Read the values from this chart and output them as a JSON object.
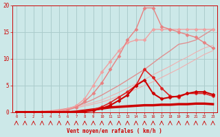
{
  "x": [
    0,
    1,
    2,
    3,
    4,
    5,
    6,
    7,
    8,
    9,
    10,
    11,
    12,
    13,
    14,
    15,
    16,
    17,
    18,
    19,
    20,
    21,
    22,
    23
  ],
  "background_color": "#cce8e8",
  "grid_color": "#aacccc",
  "xlabel": "Vent moyen/en rafales ( km/h )",
  "xlabel_color": "#cc0000",
  "tick_color": "#cc0000",
  "series": [
    {
      "values": [
        0,
        0.05,
        0.1,
        0.2,
        0.3,
        0.5,
        0.7,
        1.0,
        1.4,
        1.8,
        2.3,
        3.0,
        3.7,
        4.5,
        5.3,
        6.1,
        7.0,
        7.8,
        8.6,
        9.5,
        10.3,
        11.2,
        12.0,
        12.5
      ],
      "color": "#f0b0b0",
      "linewidth": 0.8,
      "marker": null,
      "markersize": 0,
      "zorder": 1
    },
    {
      "values": [
        0,
        0.04,
        0.08,
        0.15,
        0.25,
        0.4,
        0.6,
        0.85,
        1.15,
        1.5,
        1.9,
        2.4,
        3.0,
        3.6,
        4.3,
        5.0,
        5.7,
        6.5,
        7.3,
        8.1,
        9.0,
        9.9,
        10.8,
        11.5
      ],
      "color": "#f0b0b0",
      "linewidth": 0.8,
      "marker": null,
      "markersize": 0,
      "zorder": 1
    },
    {
      "values": [
        0,
        0,
        0,
        0.05,
        0.1,
        0.3,
        0.6,
        1.2,
        2.5,
        5.0,
        7.5,
        9.5,
        11.5,
        13.0,
        13.5,
        13.5,
        15.5,
        15.5,
        15.5,
        15.5,
        15.5,
        15.5,
        15.5,
        15.5
      ],
      "color": "#f0a0a0",
      "linewidth": 1.0,
      "marker": "D",
      "markersize": 2.5,
      "zorder": 2
    },
    {
      "values": [
        0,
        0,
        0,
        0,
        0.05,
        0.15,
        0.4,
        0.9,
        2.0,
        3.5,
        5.5,
        8.0,
        10.5,
        13.5,
        15.5,
        19.5,
        19.5,
        16.0,
        15.5,
        15.0,
        14.5,
        14.0,
        13.0,
        12.0
      ],
      "color": "#e88080",
      "linewidth": 1.0,
      "marker": "D",
      "markersize": 2.5,
      "zorder": 2
    },
    {
      "values": [
        0,
        0,
        0.05,
        0.1,
        0.2,
        0.4,
        0.7,
        1.1,
        1.7,
        2.4,
        3.2,
        4.1,
        5.0,
        6.0,
        7.0,
        8.0,
        9.2,
        10.4,
        11.5,
        12.7,
        13.0,
        13.5,
        14.5,
        15.5
      ],
      "color": "#e09090",
      "linewidth": 1.0,
      "marker": null,
      "markersize": 0,
      "zorder": 1
    },
    {
      "values": [
        0,
        0,
        0,
        0,
        0,
        0,
        0,
        0,
        0.2,
        0.5,
        1.0,
        1.8,
        2.8,
        3.8,
        5.0,
        8.0,
        6.5,
        4.5,
        3.0,
        2.8,
        3.5,
        3.5,
        3.5,
        3.0
      ],
      "color": "#dd2222",
      "linewidth": 1.2,
      "marker": "P",
      "markersize": 3,
      "zorder": 4
    },
    {
      "values": [
        0,
        0,
        0,
        0,
        0,
        0,
        0,
        0.1,
        0.3,
        0.5,
        0.7,
        0.9,
        1.0,
        1.1,
        1.2,
        1.3,
        1.3,
        1.4,
        1.4,
        1.5,
        1.5,
        1.6,
        1.6,
        1.5
      ],
      "color": "#cc0000",
      "linewidth": 2.5,
      "marker": null,
      "markersize": 0,
      "zorder": 3
    },
    {
      "values": [
        0,
        0,
        0,
        0,
        0,
        0,
        0,
        0,
        0.1,
        0.3,
        0.7,
        1.3,
        2.2,
        3.2,
        5.0,
        6.0,
        3.5,
        2.5,
        2.8,
        3.0,
        3.5,
        3.8,
        3.8,
        3.3
      ],
      "color": "#cc0000",
      "linewidth": 1.5,
      "marker": "D",
      "markersize": 2.5,
      "zorder": 5
    }
  ],
  "wind_symbols": [
    0,
    1,
    2,
    3,
    4,
    5,
    6,
    7,
    8,
    9,
    10,
    11,
    12,
    13,
    14,
    15,
    16,
    17,
    18,
    19,
    20,
    21,
    22,
    23
  ],
  "ylim": [
    0,
    20
  ],
  "yticks": [
    0,
    5,
    10,
    15,
    20
  ],
  "xlim": [
    -0.5,
    23.5
  ]
}
